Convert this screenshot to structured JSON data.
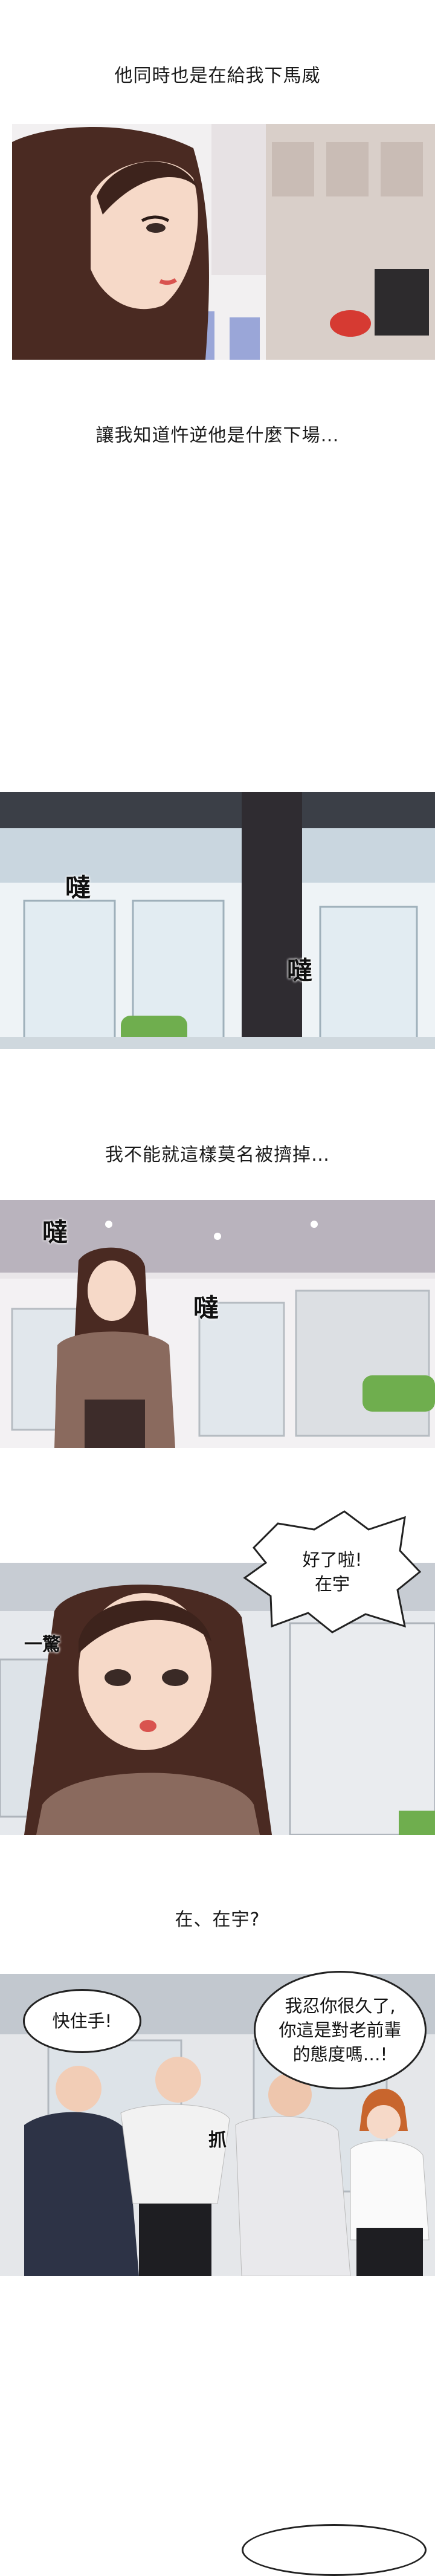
{
  "captions": {
    "c1": "他同時也是在給我下馬威",
    "c2": "讓我知道忤逆他是什麼下場…",
    "c3": "我不能就這樣莫名被擠掉…",
    "c4": "在、在宇?"
  },
  "sfx": {
    "panel2_a": "噠",
    "panel2_b": "噠",
    "panel3_a": "噠",
    "panel3_b": "噠",
    "panel4_startle": "一驚",
    "panel5_grab": "抓"
  },
  "bubbles": {
    "panel4_shout": "好了啦!\n在宇",
    "panel5_left": "快住手!",
    "panel5_right": "我忍你很久了,\n你這是對老前輩\n的態度嗎…!"
  },
  "colors": {
    "skin": "#f6d9c8",
    "hair": "#4a2a22",
    "sweater": "#8a6a5e",
    "sky": "#dfe8ee",
    "office_wall": "#e9e6e9"
  }
}
